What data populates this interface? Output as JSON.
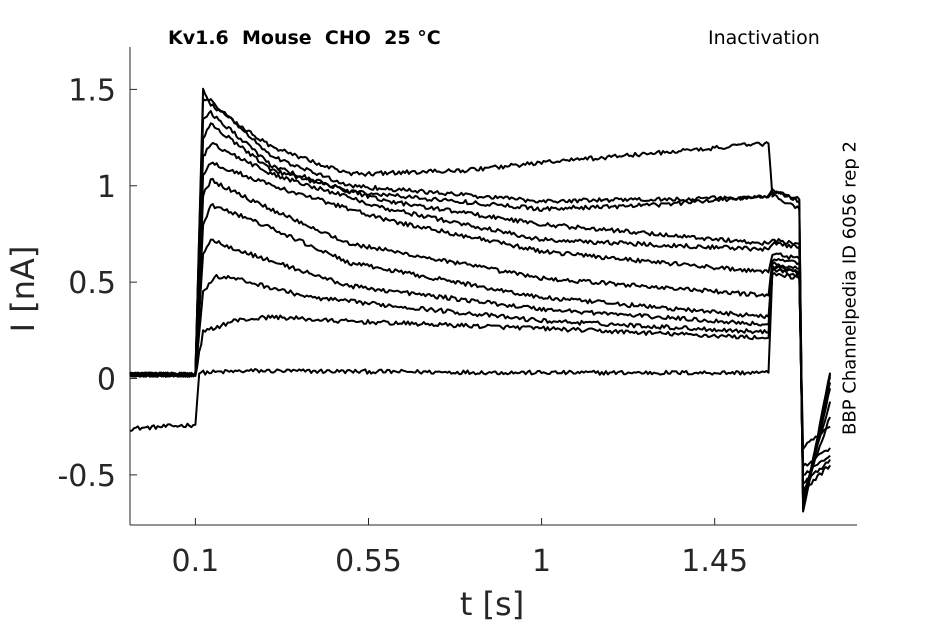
{
  "header": {
    "title": "Kv1.6  Mouse  CHO  25 °C",
    "protocol": "Inactivation",
    "source": "BBP Channelpedia ID 6056 rep 2"
  },
  "chart_data": {
    "type": "line",
    "title": "Kv1.6  Mouse  CHO  25 °C",
    "xlabel": "t [s]",
    "ylabel": "I [nA]",
    "xlim": [
      -0.07,
      1.82
    ],
    "ylim": [
      -0.76,
      1.72
    ],
    "xticks": [
      0.1,
      0.55,
      1,
      1.45
    ],
    "xtick_labels": [
      "0.1",
      "0.55",
      "1",
      "1.45"
    ],
    "yticks": [
      -0.5,
      0,
      0.5,
      1,
      1.5
    ],
    "ytick_labels": [
      "-0.5",
      "0",
      "0.5",
      "1",
      "1.5"
    ],
    "grid": false,
    "line_color": "#000000",
    "step_times": {
      "step_on": 0.1,
      "step_off": 1.6,
      "trace_end": 1.75
    },
    "series": [
      {
        "values": [
          [
            -0.07,
            -0.26
          ],
          [
            0.1,
            -0.24
          ],
          [
            0.11,
            0.03
          ],
          [
            0.25,
            0.04
          ],
          [
            1.0,
            0.03
          ],
          [
            1.59,
            0.03
          ],
          [
            1.6,
            0.57
          ],
          [
            1.67,
            0.53
          ],
          [
            1.68,
            -0.36
          ],
          [
            1.75,
            -0.25
          ]
        ]
      },
      {
        "values": [
          [
            -0.07,
            0.02
          ],
          [
            0.1,
            0.02
          ],
          [
            0.12,
            0.24
          ],
          [
            0.2,
            0.3
          ],
          [
            0.3,
            0.32
          ],
          [
            0.45,
            0.3
          ],
          [
            1.0,
            0.26
          ],
          [
            1.59,
            0.21
          ],
          [
            1.6,
            0.58
          ],
          [
            1.67,
            0.55
          ],
          [
            1.68,
            -0.46
          ],
          [
            1.75,
            -0.36
          ]
        ]
      },
      {
        "values": [
          [
            -0.07,
            0.02
          ],
          [
            0.1,
            0.02
          ],
          [
            0.12,
            0.45
          ],
          [
            0.15,
            0.53
          ],
          [
            0.2,
            0.52
          ],
          [
            0.4,
            0.42
          ],
          [
            1.0,
            0.3
          ],
          [
            1.59,
            0.24
          ],
          [
            1.6,
            0.55
          ],
          [
            1.67,
            0.52
          ],
          [
            1.68,
            -0.5
          ],
          [
            1.75,
            -0.4
          ]
        ]
      },
      {
        "values": [
          [
            -0.07,
            0.02
          ],
          [
            0.1,
            0.02
          ],
          [
            0.12,
            0.65
          ],
          [
            0.14,
            0.72
          ],
          [
            0.25,
            0.64
          ],
          [
            0.5,
            0.48
          ],
          [
            1.0,
            0.36
          ],
          [
            1.59,
            0.28
          ],
          [
            1.6,
            0.58
          ],
          [
            1.67,
            0.55
          ],
          [
            1.68,
            -0.55
          ],
          [
            1.75,
            -0.42
          ]
        ]
      },
      {
        "values": [
          [
            -0.07,
            0.02
          ],
          [
            0.1,
            0.02
          ],
          [
            0.12,
            0.8
          ],
          [
            0.14,
            0.9
          ],
          [
            0.25,
            0.82
          ],
          [
            0.5,
            0.6
          ],
          [
            1.0,
            0.42
          ],
          [
            1.59,
            0.32
          ],
          [
            1.6,
            0.6
          ],
          [
            1.67,
            0.57
          ],
          [
            1.68,
            -0.58
          ],
          [
            1.75,
            -0.45
          ]
        ]
      },
      {
        "values": [
          [
            -0.07,
            0.02
          ],
          [
            0.1,
            0.02
          ],
          [
            0.12,
            0.95
          ],
          [
            0.14,
            1.03
          ],
          [
            0.25,
            0.92
          ],
          [
            0.5,
            0.7
          ],
          [
            1.0,
            0.52
          ],
          [
            1.59,
            0.43
          ],
          [
            1.6,
            0.62
          ],
          [
            1.67,
            0.6
          ],
          [
            1.68,
            -0.6
          ],
          [
            1.75,
            -0.2
          ]
        ]
      },
      {
        "values": [
          [
            -0.07,
            0.02
          ],
          [
            0.1,
            0.02
          ],
          [
            0.12,
            1.05
          ],
          [
            0.14,
            1.12
          ],
          [
            0.3,
            1.0
          ],
          [
            0.6,
            0.82
          ],
          [
            1.0,
            0.66
          ],
          [
            1.59,
            0.55
          ],
          [
            1.6,
            0.65
          ],
          [
            1.67,
            0.62
          ],
          [
            1.68,
            -0.62
          ],
          [
            1.75,
            -0.12
          ]
        ]
      },
      {
        "values": [
          [
            -0.07,
            0.02
          ],
          [
            0.1,
            0.02
          ],
          [
            0.12,
            1.15
          ],
          [
            0.14,
            1.22
          ],
          [
            0.3,
            1.06
          ],
          [
            0.6,
            0.88
          ],
          [
            1.0,
            0.72
          ],
          [
            1.59,
            0.67
          ],
          [
            1.6,
            0.7
          ],
          [
            1.67,
            0.68
          ],
          [
            1.68,
            -0.64
          ],
          [
            1.75,
            -0.05
          ]
        ]
      },
      {
        "values": [
          [
            -0.07,
            0.02
          ],
          [
            0.1,
            0.02
          ],
          [
            0.12,
            1.25
          ],
          [
            0.14,
            1.32
          ],
          [
            0.3,
            1.08
          ],
          [
            0.6,
            0.92
          ],
          [
            1.0,
            0.8
          ],
          [
            1.59,
            0.7
          ],
          [
            1.6,
            0.72
          ],
          [
            1.67,
            0.7
          ],
          [
            1.68,
            -0.66
          ],
          [
            1.75,
            -0.02
          ]
        ]
      },
      {
        "values": [
          [
            -0.07,
            0.02
          ],
          [
            0.1,
            0.02
          ],
          [
            0.12,
            1.35
          ],
          [
            0.14,
            1.38
          ],
          [
            0.3,
            1.1
          ],
          [
            0.5,
            0.97
          ],
          [
            1.0,
            0.88
          ],
          [
            1.3,
            0.9
          ],
          [
            1.59,
            0.95
          ],
          [
            1.6,
            0.98
          ],
          [
            1.67,
            0.92
          ],
          [
            1.68,
            -0.67
          ],
          [
            1.75,
            0.01
          ]
        ]
      },
      {
        "values": [
          [
            -0.07,
            0.02
          ],
          [
            0.1,
            0.02
          ],
          [
            0.12,
            1.45
          ],
          [
            0.14,
            1.44
          ],
          [
            0.3,
            1.15
          ],
          [
            0.5,
            1.0
          ],
          [
            1.0,
            0.92
          ],
          [
            1.3,
            0.93
          ],
          [
            1.59,
            0.94
          ],
          [
            1.6,
            0.97
          ],
          [
            1.67,
            0.93
          ],
          [
            1.68,
            -0.68
          ],
          [
            1.75,
            0.02
          ]
        ]
      },
      {
        "values": [
          [
            -0.07,
            0.02
          ],
          [
            0.1,
            0.02
          ],
          [
            0.12,
            1.5
          ],
          [
            0.14,
            1.42
          ],
          [
            0.3,
            1.2
          ],
          [
            0.5,
            1.06
          ],
          [
            0.8,
            1.08
          ],
          [
            1.0,
            1.12
          ],
          [
            1.3,
            1.17
          ],
          [
            1.59,
            1.22
          ],
          [
            1.6,
            0.95
          ],
          [
            1.67,
            0.88
          ],
          [
            1.68,
            -0.69
          ],
          [
            1.75,
            0.03
          ]
        ]
      }
    ]
  }
}
